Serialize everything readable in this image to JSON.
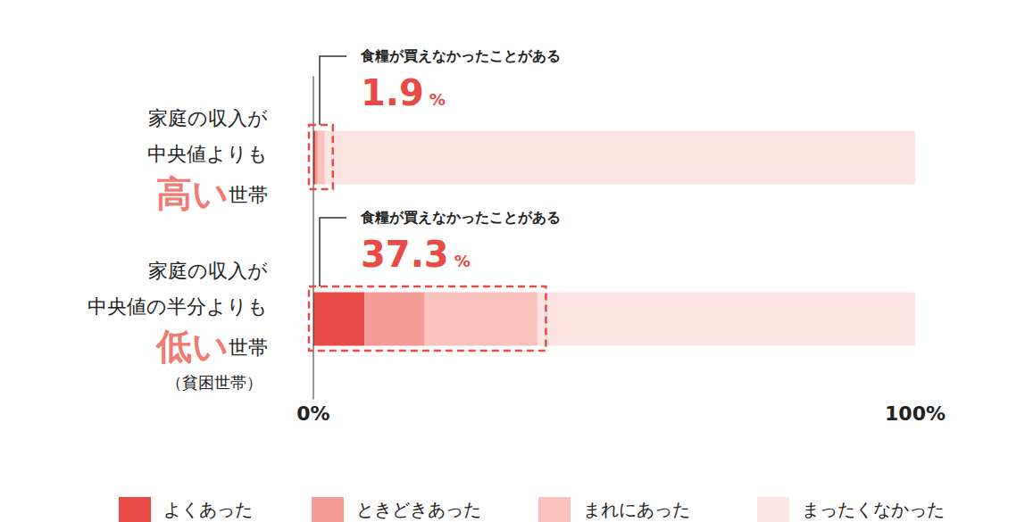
{
  "chart_data": {
    "type": "bar",
    "orientation": "horizontal",
    "stacked": true,
    "categories": [
      [
        "家庭の収入が",
        "中央値よりも",
        "高い",
        "世帯"
      ],
      [
        "家庭の収入が",
        "中央値の半分よりも",
        "低い",
        "世帯",
        "（貧困世帯）"
      ]
    ],
    "series": [
      {
        "name": "よくあった",
        "color": "#e84a45",
        "values": [
          0.3,
          8.5
        ]
      },
      {
        "name": "ときどきあった",
        "color": "#f59c96",
        "values": [
          0.5,
          10.0
        ]
      },
      {
        "name": "まれにあった",
        "color": "#f9c2bd",
        "values": [
          1.1,
          18.8
        ]
      },
      {
        "name": "まったくなかった",
        "color": "#fde3e1",
        "values": [
          98.1,
          62.7
        ]
      }
    ],
    "xlim": [
      0,
      100
    ],
    "xticks": [
      {
        "value": 0,
        "label": "0%"
      },
      {
        "value": 100,
        "label": "100%"
      }
    ],
    "annotations": [
      {
        "text": "食糧が買えなかったことがある",
        "value": 1.9,
        "unit": "%",
        "color": "#e84a45"
      },
      {
        "text": "食糧が買えなかったことがある",
        "value": 37.3,
        "unit": "%",
        "color": "#e84a45"
      }
    ],
    "legend": "bottom",
    "grid": false
  }
}
